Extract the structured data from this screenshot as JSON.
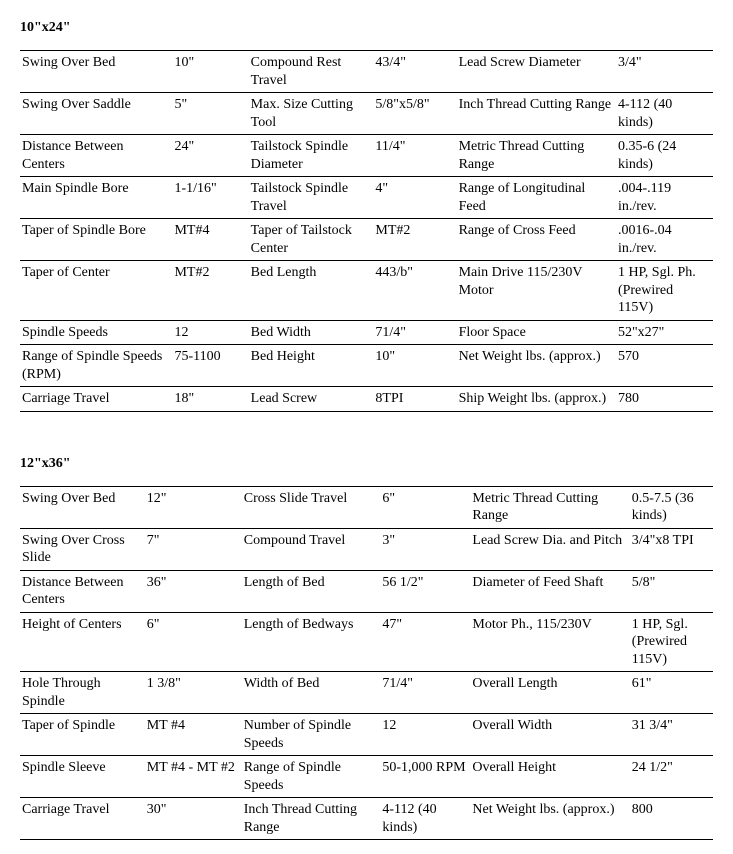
{
  "sections": {
    "s1": {
      "title": "10\"x24\"",
      "rows": [
        [
          "Swing Over Bed",
          "10\"",
          "Compound Rest Travel",
          "43/4\"",
          "Lead Screw Diameter",
          "3/4\""
        ],
        [
          "Swing Over Saddle",
          "5\"",
          "Max. Size Cutting Tool",
          "5/8\"x5/8\"",
          "Inch Thread Cutting Range",
          "4-112 (40 kinds)"
        ],
        [
          "Distance Between Centers",
          "24\"",
          "Tailstock Spindle Diameter",
          "11/4\"",
          "Metric Thread Cutting Range",
          "0.35-6 (24 kinds)"
        ],
        [
          "Main Spindle Bore",
          "1-1/16\"",
          "Tailstock Spindle Travel",
          "4\"",
          "Range of Longitudinal Feed",
          ".004-.119 in./rev."
        ],
        [
          "Taper of Spindle Bore",
          "MT#4",
          "Taper of Tailstock Center",
          "MT#2",
          "Range of Cross Feed",
          ".0016-.04 in./rev."
        ],
        [
          "Taper of Center",
          "MT#2",
          "Bed Length",
          "443/b\"",
          "Main Drive 115/230V Motor",
          "1 HP, Sgl. Ph. (Prewired 115V)"
        ],
        [
          "Spindle Speeds",
          "12",
          "Bed Width",
          "71/4\"",
          "Floor Space",
          "52\"x27\""
        ],
        [
          "Range of Spindle Speeds (RPM)",
          "75-1100",
          "Bed Height",
          "10\"",
          "Net Weight lbs. (approx.)",
          "570"
        ],
        [
          "Carriage Travel",
          "18\"",
          "Lead Screw",
          "8TPI",
          "Ship Weight lbs. (approx.)",
          "780"
        ]
      ]
    },
    "s2": {
      "title": "12\"x36\"",
      "rows": [
        [
          "Swing Over Bed",
          "12\"",
          "Cross Slide Travel",
          "6\"",
          "Metric Thread Cutting Range",
          "0.5-7.5 (36 kinds)"
        ],
        [
          "Swing Over Cross Slide",
          "7\"",
          "Compound Travel",
          "3\"",
          "Lead Screw Dia. and Pitch",
          "3/4\"x8 TPI"
        ],
        [
          "Distance Between Centers",
          "36\"",
          "Length of Bed",
          "56 1/2\"",
          "Diameter of Feed Shaft",
          "5/8\""
        ],
        [
          "Height of Centers",
          "6\"",
          "Length of Bedways",
          "47\"",
          "Motor Ph., 115/230V",
          "1 HP, Sgl. (Prewired 115V)"
        ],
        [
          "Hole Through Spindle",
          "1 3/8\"",
          "Width of Bed",
          "71/4\"",
          "Overall Length",
          "61\""
        ],
        [
          "Taper of Spindle",
          "MT #4",
          "Number of Spindle Speeds",
          "12",
          "Overall Width",
          "31 3/4\""
        ],
        [
          "Spindle Sleeve",
          "MT #4 - MT #2",
          "Range of Spindle Speeds",
          "50-1,000 RPM",
          "Overall Height",
          "24 1/2\""
        ],
        [
          "Carriage Travel",
          "30\"",
          "Inch Thread Cutting Range",
          "4-112 (40 kinds)",
          "Net Weight lbs. (approx.)",
          "800"
        ]
      ]
    }
  },
  "style": {
    "font_family": "Times New Roman",
    "font_size_pt": 11,
    "text_color": "#000000",
    "background_color": "#ffffff",
    "border_color": "#000000"
  }
}
